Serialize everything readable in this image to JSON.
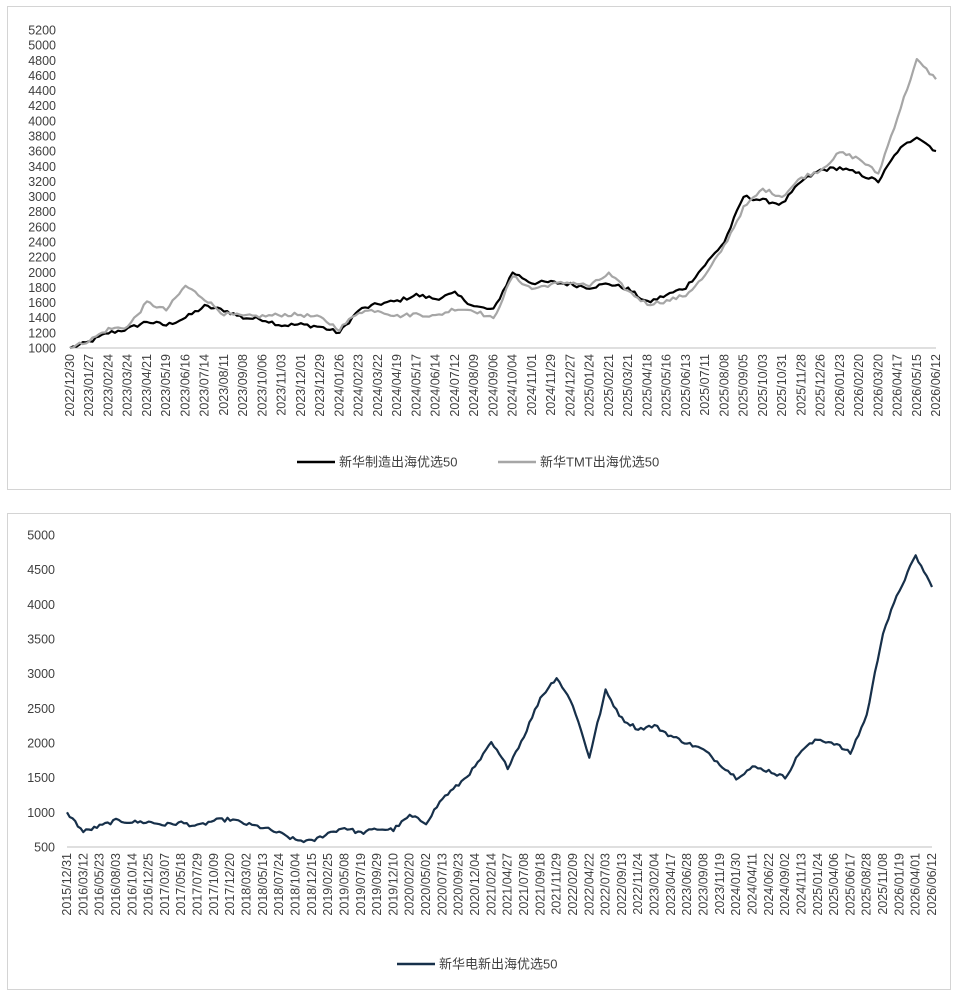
{
  "chart_data": [
    {
      "type": "line",
      "ylim": [
        1000,
        5200
      ],
      "yticks": [
        1000,
        1200,
        1400,
        1600,
        1800,
        2000,
        2200,
        2400,
        2600,
        2800,
        3000,
        3200,
        3400,
        3600,
        3800,
        4000,
        4200,
        4400,
        4600,
        4800,
        5000,
        5200
      ],
      "xticks": [
        "2022/12/30",
        "2023/01/27",
        "2023/02/24",
        "2023/03/24",
        "2023/04/21",
        "2023/05/19",
        "2023/06/16",
        "2023/07/14",
        "2023/08/11",
        "2023/09/08",
        "2023/10/06",
        "2023/11/03",
        "2023/12/01",
        "2023/12/29",
        "2024/01/26",
        "2024/02/23",
        "2024/03/22",
        "2024/04/19",
        "2024/05/17",
        "2024/06/14",
        "2024/07/12",
        "2024/08/09",
        "2024/09/06",
        "2024/10/04",
        "2024/11/01",
        "2024/11/29",
        "2024/12/27",
        "2025/01/24",
        "2025/02/21",
        "2025/03/21",
        "2025/04/18",
        "2025/05/16",
        "2025/06/13",
        "2025/07/11",
        "2025/08/08",
        "2025/09/05",
        "2025/10/03",
        "2025/10/31",
        "2025/11/28",
        "2025/12/26",
        "2026/01/23",
        "2026/02/20",
        "2026/03/20",
        "2026/04/17",
        "2026/05/15",
        "2026/06/12"
      ],
      "legend_position": "bottom",
      "series": [
        {
          "name": "新华制造出海优选50",
          "color": "#000000",
          "values": [
            1000,
            1080,
            1200,
            1250,
            1350,
            1300,
            1400,
            1550,
            1500,
            1400,
            1380,
            1300,
            1310,
            1280,
            1200,
            1500,
            1580,
            1620,
            1700,
            1650,
            1720,
            1550,
            1500,
            2000,
            1860,
            1870,
            1840,
            1800,
            1850,
            1780,
            1600,
            1700,
            1800,
            2100,
            2400,
            3000,
            2950,
            2900,
            3200,
            3350,
            3380,
            3300,
            3200,
            3600,
            3800,
            3600
          ]
        },
        {
          "name": "新华TMT出海优选50",
          "color": "#a6a6a6",
          "values": [
            1000,
            1100,
            1250,
            1280,
            1600,
            1500,
            1820,
            1650,
            1450,
            1420,
            1420,
            1440,
            1440,
            1400,
            1250,
            1480,
            1500,
            1420,
            1450,
            1420,
            1520,
            1500,
            1380,
            1950,
            1780,
            1840,
            1870,
            1820,
            1980,
            1750,
            1580,
            1620,
            1700,
            1950,
            2350,
            2850,
            3100,
            3000,
            3250,
            3350,
            3580,
            3500,
            3300,
            4050,
            4800,
            4550
          ]
        }
      ]
    },
    {
      "type": "line",
      "ylim": [
        500,
        5000
      ],
      "yticks": [
        500,
        1000,
        1500,
        2000,
        2500,
        3000,
        3500,
        4000,
        4500,
        5000
      ],
      "xticks": [
        "2015/12/31",
        "2016/03/12",
        "2016/05/23",
        "2016/08/03",
        "2016/10/14",
        "2016/12/25",
        "2017/03/07",
        "2017/05/18",
        "2017/07/29",
        "2017/10/09",
        "2017/12/20",
        "2018/03/02",
        "2018/05/13",
        "2018/07/24",
        "2018/10/04",
        "2018/12/15",
        "2019/02/25",
        "2019/05/08",
        "2019/07/19",
        "2019/09/29",
        "2019/12/10",
        "2020/02/20",
        "2020/05/02",
        "2020/07/13",
        "2020/09/23",
        "2020/12/04",
        "2021/02/14",
        "2021/04/27",
        "2021/07/08",
        "2021/09/18",
        "2021/11/29",
        "2022/02/09",
        "2022/04/22",
        "2022/07/03",
        "2022/09/13",
        "2022/11/24",
        "2023/02/04",
        "2023/04/17",
        "2023/06/28",
        "2023/09/08",
        "2023/11/19",
        "2024/01/30",
        "2024/04/11",
        "2024/06/22",
        "2024/09/02",
        "2024/11/13",
        "2025/01/24",
        "2025/04/06",
        "2025/06/17",
        "2025/08/28",
        "2025/11/08",
        "2026/01/19",
        "2026/04/01",
        "2026/06/12"
      ],
      "legend_position": "bottom",
      "series": [
        {
          "name": "新华电新出海优选50",
          "color": "#17304a",
          "values": [
            1000,
            720,
            800,
            880,
            860,
            860,
            820,
            850,
            800,
            880,
            900,
            830,
            780,
            700,
            600,
            580,
            700,
            780,
            700,
            760,
            750,
            950,
            850,
            1200,
            1400,
            1650,
            2000,
            1650,
            2100,
            2650,
            2950,
            2550,
            1800,
            2750,
            2350,
            2200,
            2250,
            2100,
            2000,
            1900,
            1700,
            1500,
            1650,
            1600,
            1500,
            1900,
            2050,
            2000,
            1850,
            2400,
            3600,
            4200,
            4700,
            4250
          ]
        }
      ]
    }
  ]
}
